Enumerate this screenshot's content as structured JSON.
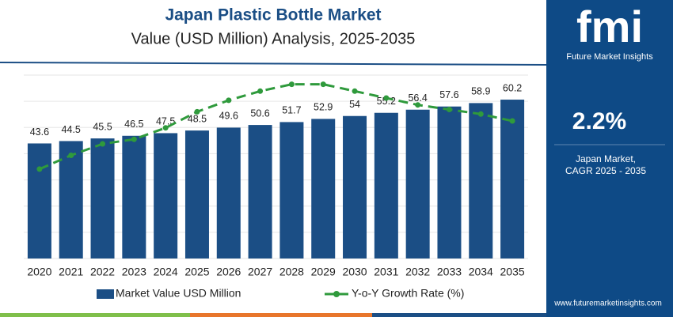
{
  "chart_data": {
    "type": "bar-line",
    "title": "Japan Plastic Bottle Market",
    "subtitle": "Value (USD Million) Analysis, 2025-2035",
    "categories": [
      "2020",
      "2021",
      "2022",
      "2023",
      "2024",
      "2025",
      "2026",
      "2027",
      "2028",
      "2029",
      "2030",
      "2031",
      "2032",
      "2033",
      "2034",
      "2035"
    ],
    "series": [
      {
        "name": "Market Value USD Million",
        "color": "#1b4e85",
        "values": [
          43.6,
          44.5,
          45.5,
          46.5,
          47.5,
          48.5,
          49.6,
          50.6,
          51.7,
          52.9,
          54.0,
          55.2,
          56.4,
          57.6,
          58.9,
          60.2
        ]
      },
      {
        "name": "Y-o-Y Growth Rate (%)",
        "color": "#2f9a3c",
        "axis": "y2",
        "values": [
          2.19,
          2.25,
          2.3,
          2.32,
          2.37,
          2.44,
          2.49,
          2.53,
          2.56,
          2.56,
          2.53,
          2.5,
          2.47,
          2.45,
          2.43,
          2.4
        ]
      }
    ],
    "ylim": [
      0,
      69.5
    ],
    "y2lim": [
      1.8,
      2.6
    ],
    "grid": true
  },
  "panel": {
    "logo": "fmi",
    "brand": "Future Market Insights",
    "cagr": "2.2%",
    "market": "Japan Market,",
    "period": "CAGR 2025 - 2035",
    "website": "www.futuremarketinsights.com"
  }
}
